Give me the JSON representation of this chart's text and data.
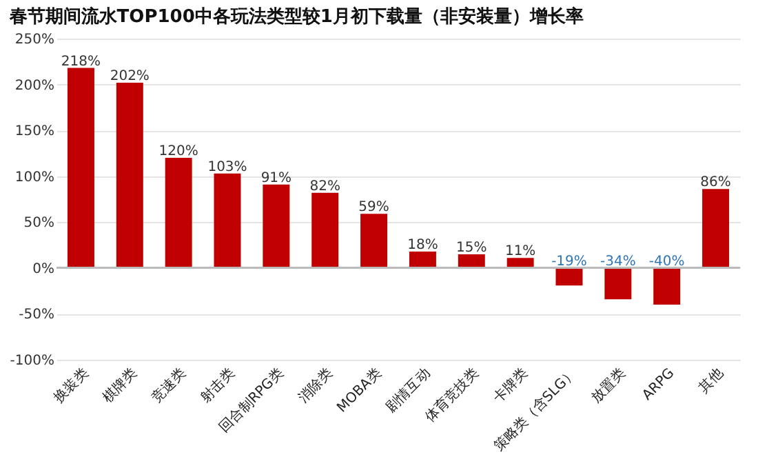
{
  "chart_data": {
    "type": "bar",
    "title": "春节期间流水TOP100中各玩法类型较1月初下载量（非安装量）增长率",
    "categories": [
      "换装类",
      "棋牌类",
      "竞速类",
      "射击类",
      "回合制RPG类",
      "消除类",
      "MOBA类",
      "剧情互动",
      "体育竞技类",
      "卡牌类",
      "策略类（含SLG）",
      "放置类",
      "ARPG",
      "其他"
    ],
    "values": [
      218,
      202,
      120,
      103,
      91,
      82,
      59,
      18,
      15,
      11,
      -19,
      -34,
      -40,
      86
    ],
    "value_labels": [
      "218%",
      "202%",
      "120%",
      "103%",
      "91%",
      "82%",
      "59%",
      "18%",
      "15%",
      "11%",
      "-19%",
      "-34%",
      "-40%",
      "86%"
    ],
    "color": "#c00000",
    "ylim": [
      -100,
      250
    ],
    "yticks": [
      {
        "value": -100,
        "label": "-100%"
      },
      {
        "value": -50,
        "label": "-50%"
      },
      {
        "value": 0,
        "label": "0%"
      },
      {
        "value": 50,
        "label": "50%"
      },
      {
        "value": 100,
        "label": "100%"
      },
      {
        "value": 150,
        "label": "150%"
      },
      {
        "value": 200,
        "label": "200%"
      },
      {
        "value": 250,
        "label": "250%"
      }
    ],
    "grid": "y"
  }
}
